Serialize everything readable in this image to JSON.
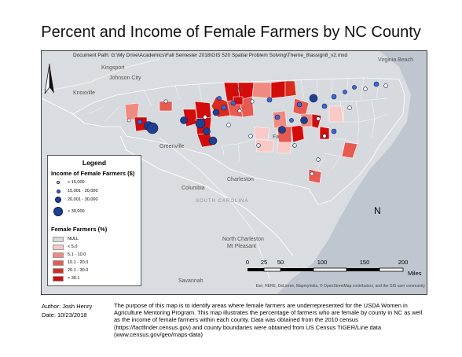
{
  "title": "Percent and Income of Female Farmers by NC County",
  "doc_path": "Document Path: G:\\My Drive\\Academics\\Fall Semester 2018\\GIS 520 Spatial Problem Solving\\Theme_8\\assign8_v2.mxd",
  "places": {
    "kingsport": "Kingsport",
    "johnson_city": "Johnson City",
    "knoxville": "Knoxville",
    "greenville": "Greenville",
    "columbia": "Columbia",
    "charleston": "Charleston",
    "north_charleston": "North Charleston",
    "mt_pleasant": "Mt Pleasant",
    "savannah": "Savannah",
    "virginia_beach": "Virginia Beach",
    "winston": "Wi",
    "south_carolina": "SOUTH CAROLINA",
    "fay": "Fa"
  },
  "legend": {
    "title": "Legend",
    "income_title": "Income of Female Farmers ($)",
    "income_classes": [
      "< 15,000",
      "15,001 - 20,000",
      "20,001 - 30,000",
      "> 30,000"
    ],
    "percent_title": "Female Farmers (%)",
    "percent_classes": [
      "NULL",
      "< 5.0",
      "5.1 - 10.0",
      "10.1 - 20.0",
      "20.1 - 30.0",
      "> 30.1"
    ]
  },
  "colors": {
    "null": "#d6d9dd",
    "lt5": "#f9c9c6",
    "p5_10": "#f08a80",
    "p10_20": "#e85a50",
    "p20_30": "#dc2a1e",
    "gt30": "#d40b0b",
    "dot_fill": "#1f3f8f",
    "dot_small": "#ffffff"
  },
  "north_label": "N",
  "scale": {
    "ticks": [
      "0",
      "25",
      "50",
      "100",
      "150",
      "200"
    ],
    "unit": "Miles"
  },
  "attribution": "Esri, HERE, DeLorme, MapmyIndia, © OpenStreetMap contributors, and the GIS user community",
  "footer": {
    "author": "Author: Josh Henry",
    "date": "Date: 10/23/2018",
    "description": "The purpose of this map is to identify areas where female farmers are underrepresented for the USDA Women in Agriculture Mentoring Program. This map illustrates the percentage of farmers who are female by county in NC as well as the income of female farmers within each county. Data was obtained from the 2010 census (https://factfinder.census.gov) and county boundaries were obtained from US Census TIGER/Line data (www.census.gov/geo/maps-data)"
  }
}
